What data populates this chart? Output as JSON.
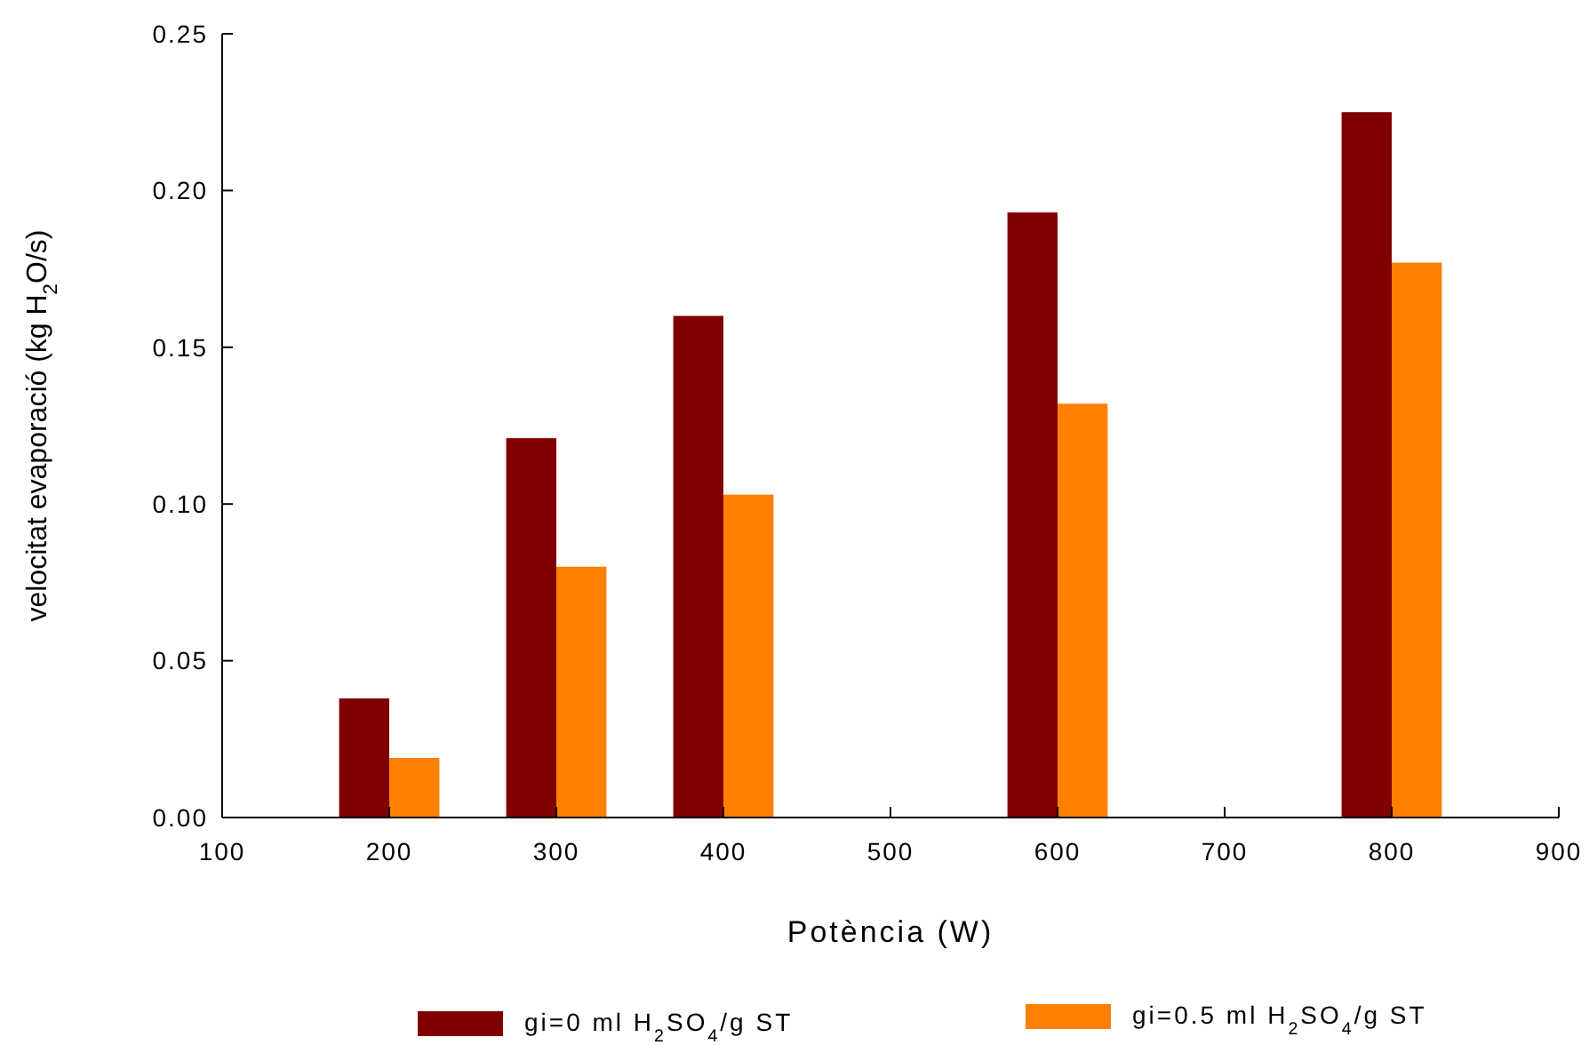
{
  "chart_data": {
    "type": "bar",
    "xlabel": "Potència (W)",
    "ylabel": "velocitat evaporació (kg H$_{2}$O/s)",
    "x": [
      200,
      300,
      400,
      600,
      800
    ],
    "series": [
      {
        "name": "gi=0 ml H$_{2}$SO$_{4}$/g ST",
        "color": "#800000",
        "values": [
          0.038,
          0.121,
          0.16,
          0.193,
          0.225
        ]
      },
      {
        "name": "gi=0.5 ml H$_{2}$SO$_{4}$/g ST",
        "color": "#ff8000",
        "values": [
          0.019,
          0.08,
          0.103,
          0.132,
          0.177
        ]
      }
    ],
    "xlim": [
      100,
      900
    ],
    "xticks": [
      100,
      200,
      300,
      400,
      500,
      600,
      700,
      800,
      900
    ],
    "ylim": [
      0,
      0.25
    ],
    "yticks": [
      {
        "value": 0,
        "label": "0.00"
      },
      {
        "value": 0.05,
        "label": "0.05"
      },
      {
        "value": 0.1,
        "label": "0.10"
      },
      {
        "value": 0.15,
        "label": "0.15"
      },
      {
        "value": 0.2,
        "label": "0.20"
      },
      {
        "value": 0.25,
        "label": "0.25"
      }
    ],
    "grid": false,
    "legend": "bottom"
  }
}
